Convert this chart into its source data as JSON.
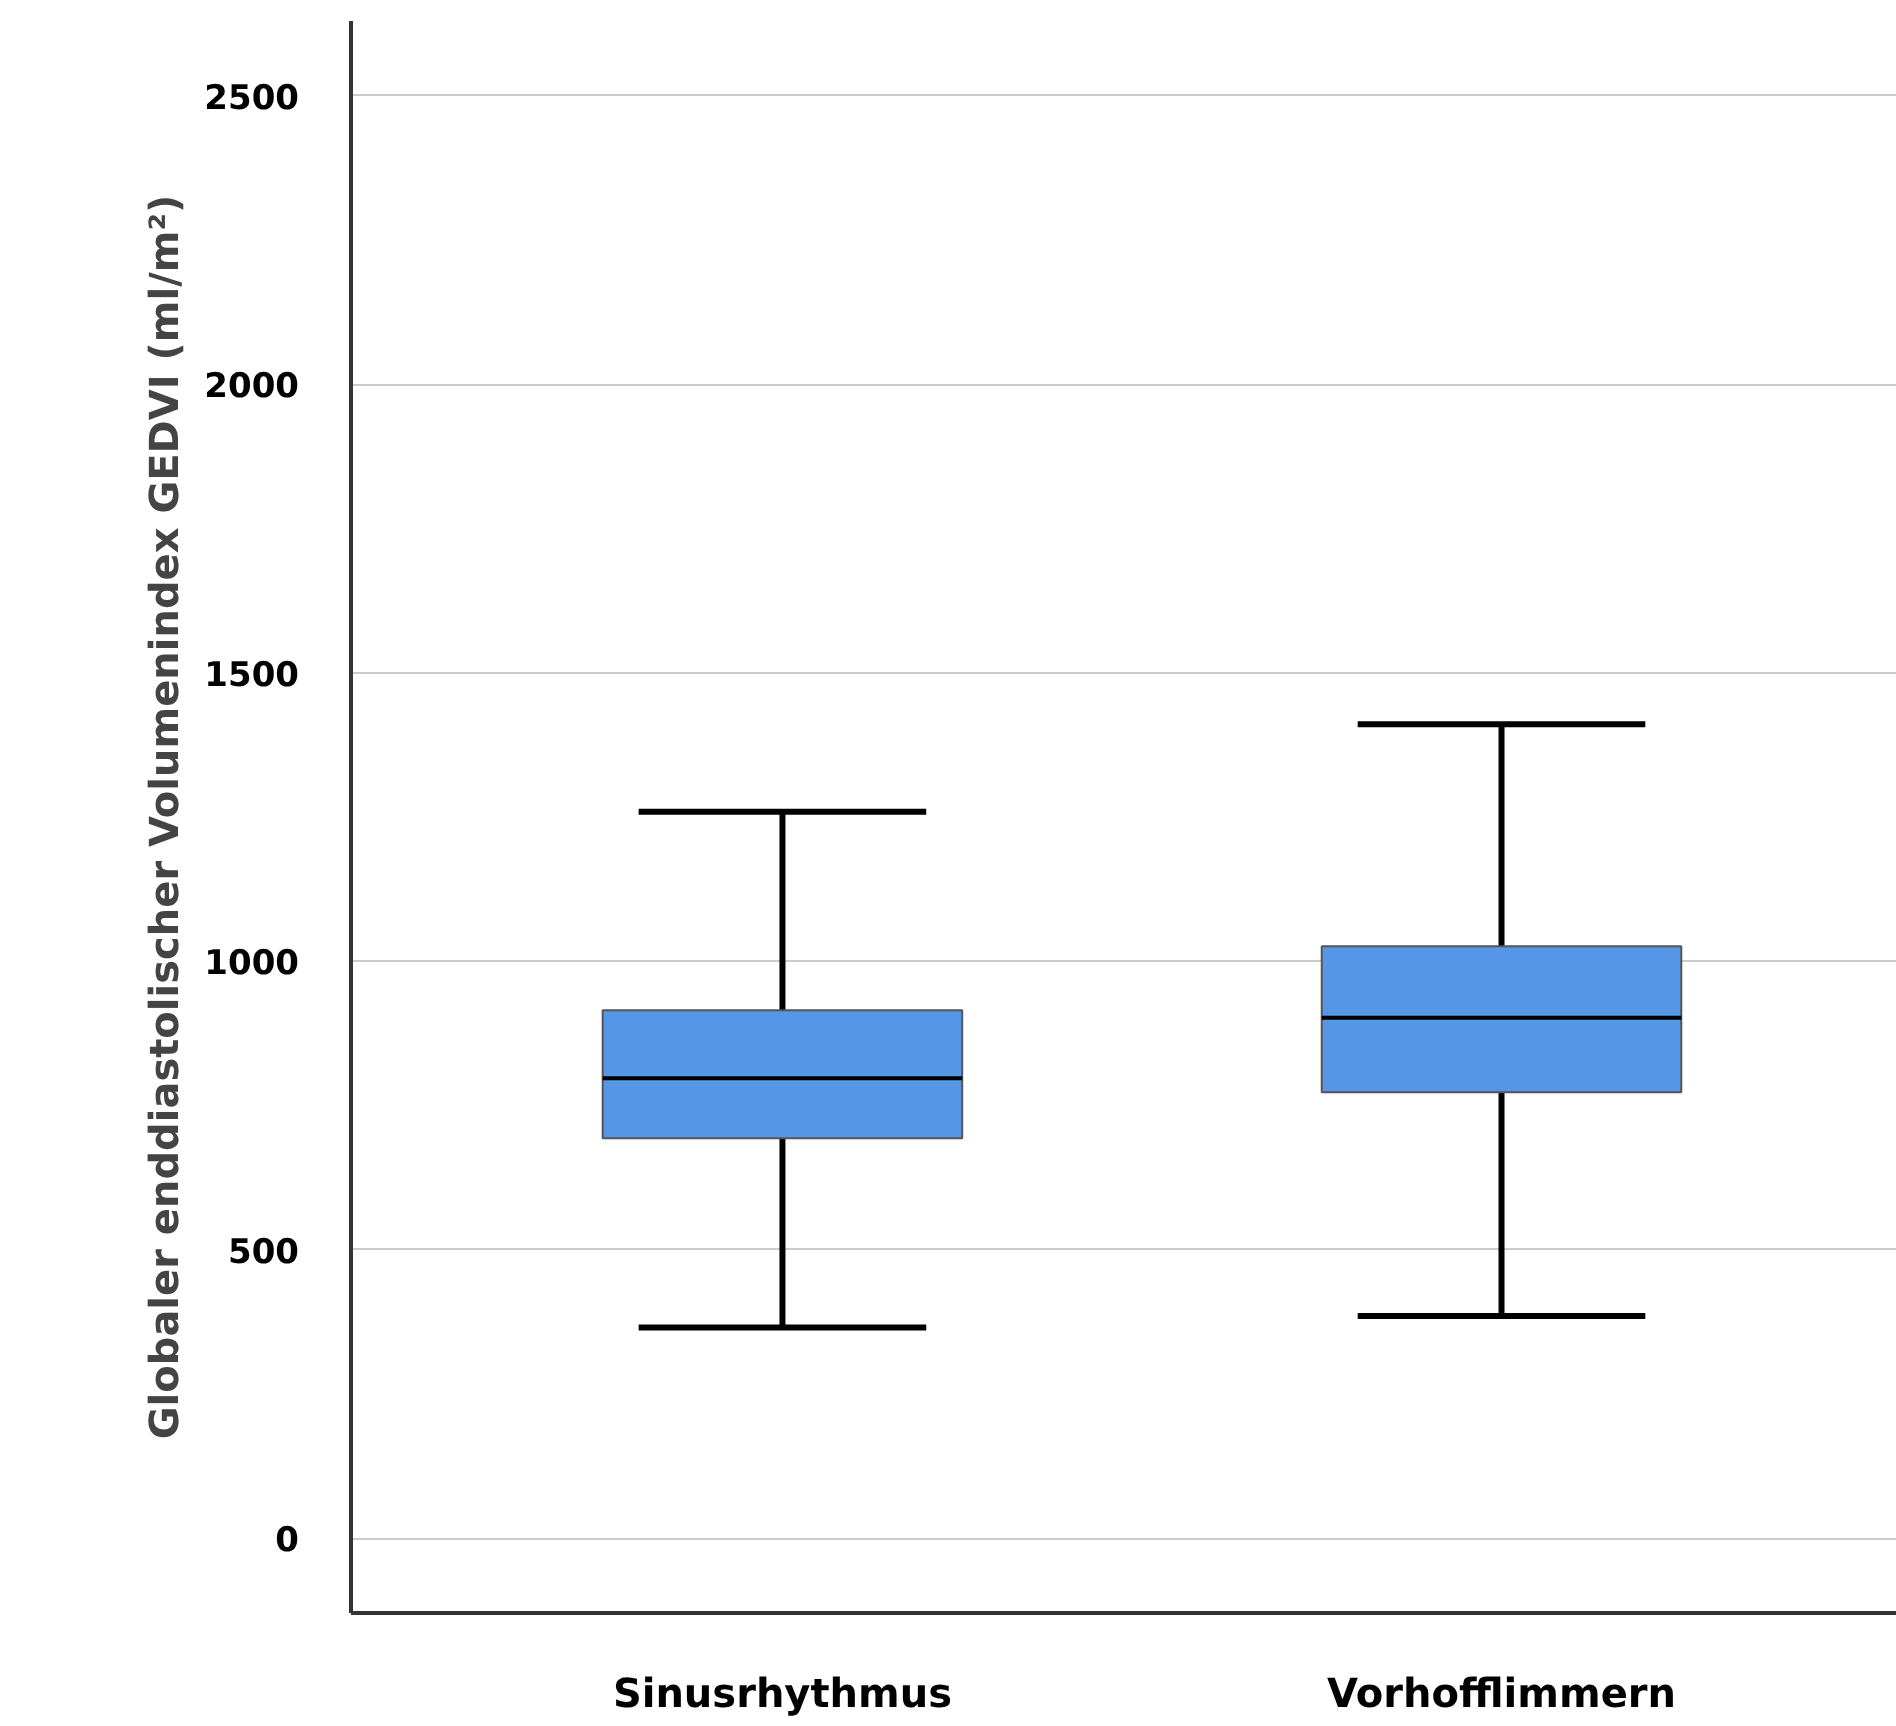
{
  "chart_data": {
    "type": "box",
    "ylabel": "Globaler enddiastolischer Volumenindex GEDVI (ml/m²)",
    "categories": [
      "Sinusrhythmus",
      "Vorhofflimmern"
    ],
    "boxes": [
      {
        "low": 365,
        "q1": 693,
        "median": 797,
        "q3": 915,
        "high": 1259
      },
      {
        "low": 385,
        "q1": 773,
        "median": 902,
        "q3": 1026,
        "high": 1411
      }
    ],
    "color": "#5596e6",
    "ylim": [
      -130,
      2630
    ],
    "yticks": [
      0,
      500,
      1000,
      1500,
      2000,
      2500
    ],
    "grid": "y"
  }
}
